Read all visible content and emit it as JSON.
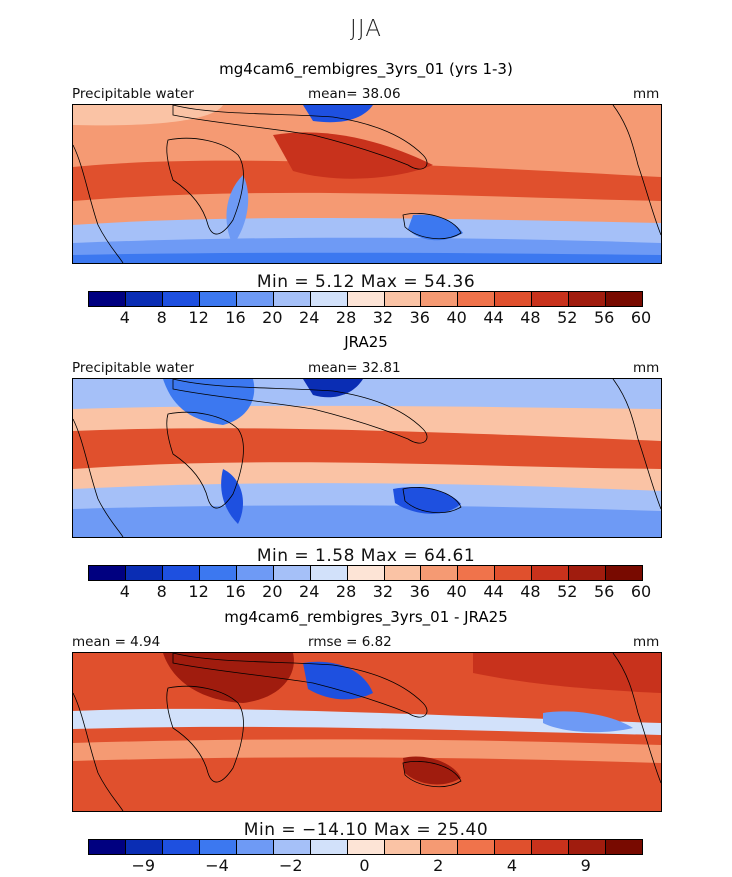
{
  "season": "JJA",
  "palette": [
    "#000080",
    "#0a2db4",
    "#1e50e0",
    "#3c78f0",
    "#6e9af5",
    "#a5c0f8",
    "#d2e1fa",
    "#fde4d6",
    "#fac3a5",
    "#f59a73",
    "#f0734b",
    "#e0502d",
    "#c8321c",
    "#a01c0e",
    "#780a00"
  ],
  "diff_palette": [
    "#000080",
    "#0a2db4",
    "#1e50e0",
    "#3c78f0",
    "#6e9af5",
    "#a5c0f8",
    "#d2e1fa",
    "#fde4d6",
    "#fac3a5",
    "#f59a73",
    "#f0734b",
    "#e0502d",
    "#c8321c",
    "#a01c0e",
    "#780a00"
  ],
  "panels": [
    {
      "title": "mg4cam6_rembigres_3yrs_01 (yrs 1-3)",
      "left_label": "Precipitable water",
      "mid_label": "mean=  38.06",
      "units": "mm",
      "minmax": "Min =   5.12  Max =   54.36",
      "tick_labels": [
        "4",
        "8",
        "12",
        "16",
        "20",
        "24",
        "28",
        "32",
        "36",
        "40",
        "44",
        "48",
        "52",
        "56",
        "60"
      ]
    },
    {
      "title": "JRA25",
      "left_label": "Precipitable water",
      "mid_label": "mean=  32.81",
      "units": "mm",
      "minmax": "Min =    1.58  Max =   64.61",
      "tick_labels": [
        "4",
        "8",
        "12",
        "16",
        "20",
        "24",
        "28",
        "32",
        "36",
        "40",
        "44",
        "48",
        "52",
        "56",
        "60"
      ]
    },
    {
      "title": "mg4cam6_rembigres_3yrs_01 - JRA25",
      "left_label": "mean =    4.94",
      "mid_label": "rmse =    6.82",
      "units": "mm",
      "minmax": "Min = −14.10  Max =   25.40",
      "tick_labels": [
        "−9",
        "−4",
        "−2",
        "0",
        "2",
        "4",
        "9"
      ]
    }
  ],
  "chart_data": [
    {
      "type": "heatmap",
      "title": "mg4cam6_rembigres_3yrs_01 (yrs 1-3)",
      "variable": "Precipitable water",
      "units": "mm",
      "mean": 38.06,
      "min": 5.12,
      "max": 54.36,
      "contour_levels": [
        4,
        8,
        12,
        16,
        20,
        24,
        28,
        32,
        36,
        40,
        44,
        48,
        52,
        56,
        60
      ]
    },
    {
      "type": "heatmap",
      "title": "JRA25",
      "variable": "Precipitable water",
      "units": "mm",
      "mean": 32.81,
      "min": 1.58,
      "max": 64.61,
      "contour_levels": [
        4,
        8,
        12,
        16,
        20,
        24,
        28,
        32,
        36,
        40,
        44,
        48,
        52,
        56,
        60
      ]
    },
    {
      "type": "heatmap",
      "title": "mg4cam6_rembigres_3yrs_01 - JRA25",
      "units": "mm",
      "mean": 4.94,
      "rmse": 6.82,
      "min": -14.1,
      "max": 25.4,
      "contour_levels": [
        -9,
        -4,
        -2,
        0,
        2,
        4,
        9
      ]
    }
  ]
}
